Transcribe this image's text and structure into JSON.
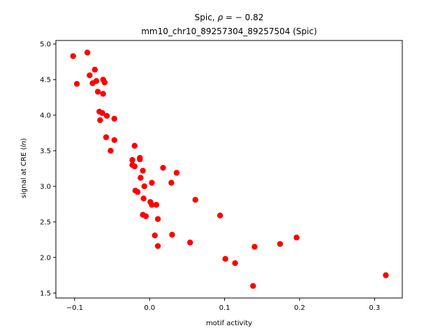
{
  "chart_data": {
    "type": "scatter",
    "title": "Spic, ρ = − 0.82",
    "subtitle": "mm10_chr10_89257304_89257504 (Spic)",
    "xlabel": "motif activity",
    "ylabel": "signal at CRE (ln)",
    "xlim": [
      -0.125,
      0.337
    ],
    "ylim": [
      1.43,
      5.05
    ],
    "xticks": [
      -0.1,
      0.0,
      0.1,
      0.2,
      0.3
    ],
    "xtick_labels": [
      "−0.1",
      "0.0",
      "0.1",
      "0.2",
      "0.3"
    ],
    "yticks": [
      1.5,
      2.0,
      2.5,
      3.0,
      3.5,
      4.0,
      4.5,
      5.0
    ],
    "ytick_labels": [
      "1.5",
      "2.0",
      "2.5",
      "3.0",
      "3.5",
      "4.0",
      "4.5",
      "5.0"
    ],
    "grid": false,
    "point_color": "#ff0000",
    "points": [
      {
        "x": -0.102,
        "y": 4.83
      },
      {
        "x": -0.097,
        "y": 4.44
      },
      {
        "x": -0.083,
        "y": 4.88
      },
      {
        "x": -0.08,
        "y": 4.56
      },
      {
        "x": -0.076,
        "y": 4.45
      },
      {
        "x": -0.073,
        "y": 4.64
      },
      {
        "x": -0.071,
        "y": 4.48
      },
      {
        "x": -0.069,
        "y": 4.33
      },
      {
        "x": -0.062,
        "y": 4.5
      },
      {
        "x": -0.06,
        "y": 4.46
      },
      {
        "x": -0.062,
        "y": 4.3
      },
      {
        "x": -0.067,
        "y": 4.05
      },
      {
        "x": -0.063,
        "y": 4.03
      },
      {
        "x": -0.066,
        "y": 3.93
      },
      {
        "x": -0.057,
        "y": 3.99
      },
      {
        "x": -0.047,
        "y": 3.95
      },
      {
        "x": -0.058,
        "y": 3.69
      },
      {
        "x": -0.047,
        "y": 3.65
      },
      {
        "x": -0.052,
        "y": 3.5
      },
      {
        "x": -0.02,
        "y": 3.57
      },
      {
        "x": -0.013,
        "y": 3.4
      },
      {
        "x": -0.023,
        "y": 3.37
      },
      {
        "x": -0.013,
        "y": 3.38
      },
      {
        "x": -0.023,
        "y": 3.3
      },
      {
        "x": -0.02,
        "y": 3.28
      },
      {
        "x": -0.009,
        "y": 3.22
      },
      {
        "x": 0.018,
        "y": 3.26
      },
      {
        "x": 0.036,
        "y": 3.19
      },
      {
        "x": -0.012,
        "y": 3.12
      },
      {
        "x": 0.003,
        "y": 3.05
      },
      {
        "x": 0.029,
        "y": 3.05
      },
      {
        "x": -0.007,
        "y": 3.0
      },
      {
        "x": -0.019,
        "y": 2.94
      },
      {
        "x": -0.016,
        "y": 2.92
      },
      {
        "x": -0.008,
        "y": 2.83
      },
      {
        "x": 0.061,
        "y": 2.81
      },
      {
        "x": 0.001,
        "y": 2.78
      },
      {
        "x": 0.003,
        "y": 2.74
      },
      {
        "x": 0.009,
        "y": 2.74
      },
      {
        "x": -0.009,
        "y": 2.6
      },
      {
        "x": -0.005,
        "y": 2.58
      },
      {
        "x": 0.011,
        "y": 2.54
      },
      {
        "x": 0.094,
        "y": 2.59
      },
      {
        "x": 0.007,
        "y": 2.31
      },
      {
        "x": 0.03,
        "y": 2.32
      },
      {
        "x": 0.011,
        "y": 2.16
      },
      {
        "x": 0.054,
        "y": 2.21
      },
      {
        "x": 0.14,
        "y": 2.15
      },
      {
        "x": 0.174,
        "y": 2.19
      },
      {
        "x": 0.196,
        "y": 2.28
      },
      {
        "x": 0.101,
        "y": 1.98
      },
      {
        "x": 0.114,
        "y": 1.92
      },
      {
        "x": 0.138,
        "y": 1.6
      },
      {
        "x": 0.315,
        "y": 1.75
      }
    ]
  }
}
